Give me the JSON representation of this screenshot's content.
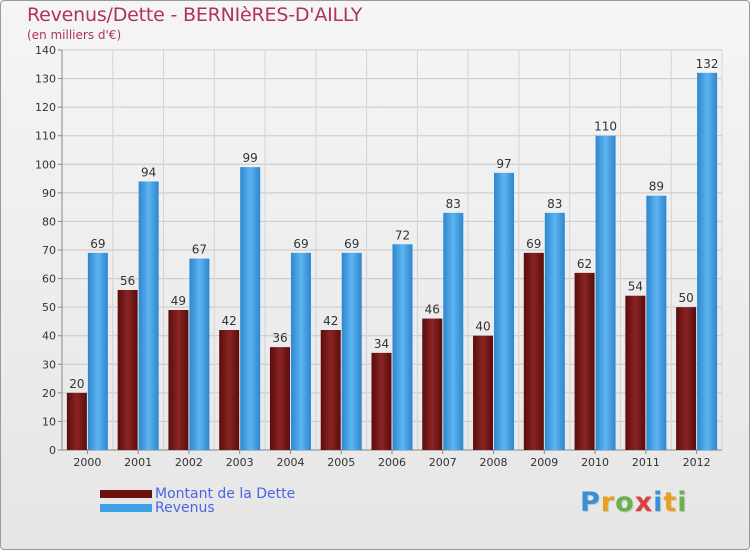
{
  "chart_data": {
    "type": "bar",
    "title": "Revenus/Dette - BERNIèRES-D'AILLY",
    "subtitle": "(en milliers d'€)",
    "categories": [
      "2000",
      "2001",
      "2002",
      "2003",
      "2004",
      "2005",
      "2006",
      "2007",
      "2008",
      "2009",
      "2010",
      "2011",
      "2012"
    ],
    "series": [
      {
        "name": "Montant de la Dette",
        "color": "#7a1a1a",
        "values": [
          20,
          56,
          49,
          42,
          36,
          42,
          34,
          46,
          40,
          69,
          62,
          54,
          50
        ]
      },
      {
        "name": "Revenus",
        "color": "#3f9fe6",
        "values": [
          69,
          94,
          67,
          99,
          69,
          69,
          72,
          83,
          97,
          83,
          110,
          89,
          132
        ]
      }
    ],
    "ylim": [
      0,
      140
    ],
    "yticks": [
      0,
      10,
      20,
      30,
      40,
      50,
      60,
      70,
      80,
      90,
      100,
      110,
      120,
      130,
      140
    ],
    "grid": true,
    "legend_position": "bottom-left"
  },
  "branding": {
    "logo_letters": [
      "P",
      "r",
      "o",
      "x",
      "i",
      "t",
      "i"
    ],
    "logo_colors": [
      "#3a8fd8",
      "#e8a020",
      "#6ab04c",
      "#d94040",
      "#3a8fd8",
      "#e8a020",
      "#6ab04c"
    ]
  }
}
